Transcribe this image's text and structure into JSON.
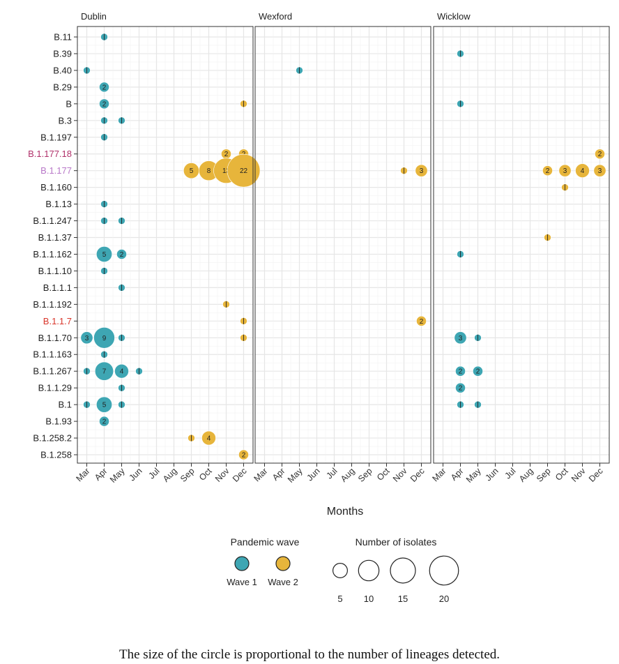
{
  "chart_data": {
    "type": "scatter",
    "xlabel": "Months",
    "months": [
      "Mar",
      "Apr",
      "May",
      "Jun",
      "Jul",
      "Aug",
      "Sep",
      "Oct",
      "Nov",
      "Dec"
    ],
    "lineages": [
      "B.11",
      "B.39",
      "B.40",
      "B.29",
      "B",
      "B.3",
      "B.1.197",
      "B.1.177.18",
      "B.1.177",
      "B.1.160",
      "B.1.13",
      "B.1.1.247",
      "B.1.1.37",
      "B.1.1.162",
      "B.1.1.10",
      "B.1.1.1",
      "B.1.1.192",
      "B.1.1.7",
      "B.1.1.70",
      "B.1.1.163",
      "B.1.1.267",
      "B.1.1.29",
      "B.1",
      "B.1.93",
      "B.1.258.2",
      "B.1.258"
    ],
    "lineage_colors": {
      "B.1.177.18": "#b0306a",
      "B.1.177": "#b878c8",
      "B.1.1.7": "#d9352a"
    },
    "wave_colors": {
      "Wave 1": "#3ea6b3",
      "Wave 2": "#e7b53b"
    },
    "panels": [
      {
        "name": "Dublin",
        "points": [
          {
            "lineage": "B.11",
            "month": "Apr",
            "count": 1,
            "wave": "Wave 1"
          },
          {
            "lineage": "B.40",
            "month": "Mar",
            "count": 1,
            "wave": "Wave 1"
          },
          {
            "lineage": "B.29",
            "month": "Apr",
            "count": 2,
            "wave": "Wave 1"
          },
          {
            "lineage": "B",
            "month": "Apr",
            "count": 2,
            "wave": "Wave 1"
          },
          {
            "lineage": "B",
            "month": "Dec",
            "count": 1,
            "wave": "Wave 2"
          },
          {
            "lineage": "B.3",
            "month": "Apr",
            "count": 1,
            "wave": "Wave 1"
          },
          {
            "lineage": "B.3",
            "month": "May",
            "count": 1,
            "wave": "Wave 1"
          },
          {
            "lineage": "B.1.197",
            "month": "Apr",
            "count": 1,
            "wave": "Wave 1"
          },
          {
            "lineage": "B.1.177.18",
            "month": "Nov",
            "count": 2,
            "wave": "Wave 2"
          },
          {
            "lineage": "B.1.177.18",
            "month": "Dec",
            "count": 2,
            "wave": "Wave 2"
          },
          {
            "lineage": "B.1.177",
            "month": "Sep",
            "count": 5,
            "wave": "Wave 2"
          },
          {
            "lineage": "B.1.177",
            "month": "Oct",
            "count": 8,
            "wave": "Wave 2"
          },
          {
            "lineage": "B.1.177",
            "month": "Nov",
            "count": 13,
            "wave": "Wave 2"
          },
          {
            "lineage": "B.1.177",
            "month": "Dec",
            "count": 22,
            "wave": "Wave 2"
          },
          {
            "lineage": "B.1.13",
            "month": "Apr",
            "count": 1,
            "wave": "Wave 1"
          },
          {
            "lineage": "B.1.1.247",
            "month": "Apr",
            "count": 1,
            "wave": "Wave 1"
          },
          {
            "lineage": "B.1.1.247",
            "month": "May",
            "count": 1,
            "wave": "Wave 1"
          },
          {
            "lineage": "B.1.1.162",
            "month": "Apr",
            "count": 5,
            "wave": "Wave 1"
          },
          {
            "lineage": "B.1.1.162",
            "month": "May",
            "count": 2,
            "wave": "Wave 1"
          },
          {
            "lineage": "B.1.1.10",
            "month": "Apr",
            "count": 1,
            "wave": "Wave 1"
          },
          {
            "lineage": "B.1.1.1",
            "month": "May",
            "count": 1,
            "wave": "Wave 1"
          },
          {
            "lineage": "B.1.1.192",
            "month": "Nov",
            "count": 1,
            "wave": "Wave 2"
          },
          {
            "lineage": "B.1.1.7",
            "month": "Dec",
            "count": 1,
            "wave": "Wave 2"
          },
          {
            "lineage": "B.1.1.70",
            "month": "Mar",
            "count": 3,
            "wave": "Wave 1"
          },
          {
            "lineage": "B.1.1.70",
            "month": "Apr",
            "count": 9,
            "wave": "Wave 1"
          },
          {
            "lineage": "B.1.1.70",
            "month": "May",
            "count": 1,
            "wave": "Wave 1"
          },
          {
            "lineage": "B.1.1.70",
            "month": "Dec",
            "count": 1,
            "wave": "Wave 2"
          },
          {
            "lineage": "B.1.1.163",
            "month": "Apr",
            "count": 1,
            "wave": "Wave 1"
          },
          {
            "lineage": "B.1.1.267",
            "month": "Mar",
            "count": 1,
            "wave": "Wave 1"
          },
          {
            "lineage": "B.1.1.267",
            "month": "Apr",
            "count": 7,
            "wave": "Wave 1"
          },
          {
            "lineage": "B.1.1.267",
            "month": "May",
            "count": 4,
            "wave": "Wave 1"
          },
          {
            "lineage": "B.1.1.267",
            "month": "Jun",
            "count": 1,
            "wave": "Wave 1"
          },
          {
            "lineage": "B.1.1.29",
            "month": "May",
            "count": 1,
            "wave": "Wave 1"
          },
          {
            "lineage": "B.1",
            "month": "Mar",
            "count": 1,
            "wave": "Wave 1"
          },
          {
            "lineage": "B.1",
            "month": "Apr",
            "count": 5,
            "wave": "Wave 1"
          },
          {
            "lineage": "B.1",
            "month": "May",
            "count": 1,
            "wave": "Wave 1"
          },
          {
            "lineage": "B.1.93",
            "month": "Apr",
            "count": 2,
            "wave": "Wave 1"
          },
          {
            "lineage": "B.1.258.2",
            "month": "Sep",
            "count": 1,
            "wave": "Wave 2"
          },
          {
            "lineage": "B.1.258.2",
            "month": "Oct",
            "count": 4,
            "wave": "Wave 2"
          },
          {
            "lineage": "B.1.258",
            "month": "Dec",
            "count": 2,
            "wave": "Wave 2"
          }
        ]
      },
      {
        "name": "Wexford",
        "points": [
          {
            "lineage": "B.40",
            "month": "May",
            "count": 1,
            "wave": "Wave 1"
          },
          {
            "lineage": "B.1.177",
            "month": "Nov",
            "count": 1,
            "wave": "Wave 2"
          },
          {
            "lineage": "B.1.177",
            "month": "Dec",
            "count": 3,
            "wave": "Wave 2"
          },
          {
            "lineage": "B.1.1.7",
            "month": "Dec",
            "count": 2,
            "wave": "Wave 2"
          }
        ]
      },
      {
        "name": "Wicklow",
        "points": [
          {
            "lineage": "B.39",
            "month": "Apr",
            "count": 1,
            "wave": "Wave 1"
          },
          {
            "lineage": "B",
            "month": "Apr",
            "count": 1,
            "wave": "Wave 1"
          },
          {
            "lineage": "B.1.177.18",
            "month": "Dec",
            "count": 2,
            "wave": "Wave 2"
          },
          {
            "lineage": "B.1.177",
            "month": "Sep",
            "count": 2,
            "wave": "Wave 2"
          },
          {
            "lineage": "B.1.177",
            "month": "Oct",
            "count": 3,
            "wave": "Wave 2"
          },
          {
            "lineage": "B.1.177",
            "month": "Nov",
            "count": 4,
            "wave": "Wave 2"
          },
          {
            "lineage": "B.1.177",
            "month": "Dec",
            "count": 3,
            "wave": "Wave 2"
          },
          {
            "lineage": "B.1.160",
            "month": "Oct",
            "count": 1,
            "wave": "Wave 2"
          },
          {
            "lineage": "B.1.1.37",
            "month": "Sep",
            "count": 1,
            "wave": "Wave 2"
          },
          {
            "lineage": "B.1.1.162",
            "month": "Apr",
            "count": 1,
            "wave": "Wave 1"
          },
          {
            "lineage": "B.1.1.70",
            "month": "Apr",
            "count": 3,
            "wave": "Wave 1"
          },
          {
            "lineage": "B.1.1.70",
            "month": "May",
            "count": 1,
            "wave": "Wave 1"
          },
          {
            "lineage": "B.1.1.267",
            "month": "Apr",
            "count": 2,
            "wave": "Wave 1"
          },
          {
            "lineage": "B.1.1.267",
            "month": "May",
            "count": 2,
            "wave": "Wave 1"
          },
          {
            "lineage": "B.1.1.29",
            "month": "Apr",
            "count": 2,
            "wave": "Wave 1"
          },
          {
            "lineage": "B.1",
            "month": "Apr",
            "count": 1,
            "wave": "Wave 1"
          },
          {
            "lineage": "B.1",
            "month": "May",
            "count": 1,
            "wave": "Wave 1"
          }
        ]
      }
    ],
    "legend": {
      "color_title": "Pandemic wave",
      "color_items": [
        "Wave 1",
        "Wave 2"
      ],
      "size_title": "Number of isolates",
      "size_items": [
        5,
        10,
        15,
        20
      ],
      "placement": "bottom"
    },
    "grid": true
  },
  "caption": "The size of the circle is proportional to the number of lineages detected."
}
